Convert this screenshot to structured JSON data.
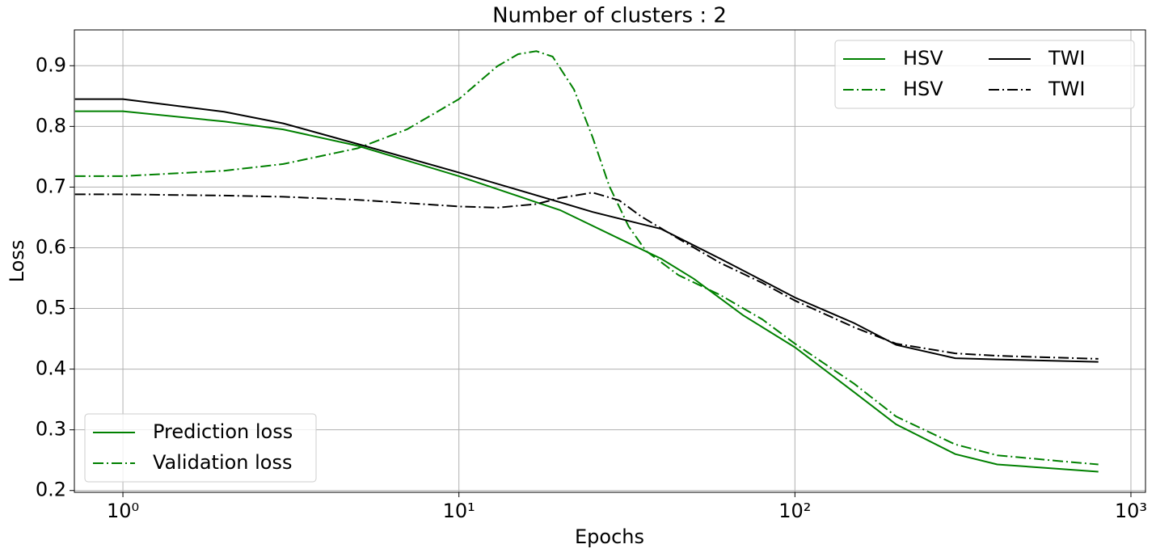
{
  "chart_data": {
    "type": "line",
    "title": "Number of clusters : 2",
    "x_label": "Epochs",
    "y_label": "Loss",
    "xscale": "log",
    "xlim": [
      0.717,
      1105
    ],
    "ylim": [
      0.197,
      0.959
    ],
    "xticks": [
      {
        "value": 1,
        "label": "10⁰"
      },
      {
        "value": 10,
        "label": "10¹"
      },
      {
        "value": 100,
        "label": "10²"
      },
      {
        "value": 1000,
        "label": "10³"
      }
    ],
    "yticks": [
      0.2,
      0.3,
      0.4,
      0.5,
      0.6,
      0.7,
      0.8,
      0.9
    ],
    "grid": true,
    "legend": {
      "loc": "upper right",
      "ncol": 2
    },
    "style_legend": {
      "loc": "lower left",
      "entries": [
        {
          "label": "Prediction loss",
          "color": "#008000",
          "linestyle": "solid"
        },
        {
          "label": "Validation loss",
          "color": "#008000",
          "linestyle": "dashdot"
        }
      ]
    },
    "series": [
      {
        "name": "HSV",
        "color": "#008000",
        "linestyle": "solid",
        "x": [
          0.72,
          1,
          2,
          3,
          5,
          10,
          17,
          20,
          30,
          40,
          50,
          70,
          100,
          150,
          200,
          300,
          400,
          600,
          800
        ],
        "values": [
          0.825,
          0.825,
          0.808,
          0.795,
          0.768,
          0.718,
          0.675,
          0.662,
          0.615,
          0.582,
          0.549,
          0.489,
          0.436,
          0.362,
          0.309,
          0.26,
          0.243,
          0.236,
          0.231
        ]
      },
      {
        "name": "HSV",
        "color": "#008000",
        "linestyle": "dashdot",
        "x": [
          0.72,
          1,
          2,
          3,
          5,
          7,
          10,
          13,
          15,
          17,
          19,
          22,
          25,
          28,
          32,
          36,
          45,
          60,
          80,
          100,
          150,
          200,
          300,
          400,
          600,
          800
        ],
        "values": [
          0.718,
          0.718,
          0.727,
          0.738,
          0.764,
          0.795,
          0.845,
          0.899,
          0.919,
          0.924,
          0.915,
          0.861,
          0.782,
          0.702,
          0.635,
          0.595,
          0.555,
          0.522,
          0.482,
          0.442,
          0.376,
          0.322,
          0.276,
          0.258,
          0.249,
          0.243
        ]
      },
      {
        "name": "TWI",
        "color": "#000000",
        "linestyle": "solid",
        "x": [
          0.72,
          1,
          2,
          3,
          5,
          10,
          20,
          25,
          40,
          60,
          80,
          100,
          150,
          200,
          300,
          400,
          800
        ],
        "values": [
          0.845,
          0.845,
          0.824,
          0.805,
          0.771,
          0.724,
          0.675,
          0.659,
          0.631,
          0.582,
          0.546,
          0.518,
          0.476,
          0.44,
          0.418,
          0.416,
          0.412
        ]
      },
      {
        "name": "TWI",
        "color": "#000000",
        "linestyle": "dashdot",
        "x": [
          0.72,
          1,
          2,
          3,
          5,
          10,
          13,
          17,
          20,
          25,
          30,
          35,
          45,
          60,
          80,
          100,
          150,
          200,
          300,
          400,
          800
        ],
        "values": [
          0.688,
          0.688,
          0.686,
          0.684,
          0.679,
          0.668,
          0.666,
          0.672,
          0.682,
          0.691,
          0.678,
          0.651,
          0.615,
          0.575,
          0.542,
          0.513,
          0.469,
          0.442,
          0.426,
          0.422,
          0.417
        ]
      }
    ]
  }
}
